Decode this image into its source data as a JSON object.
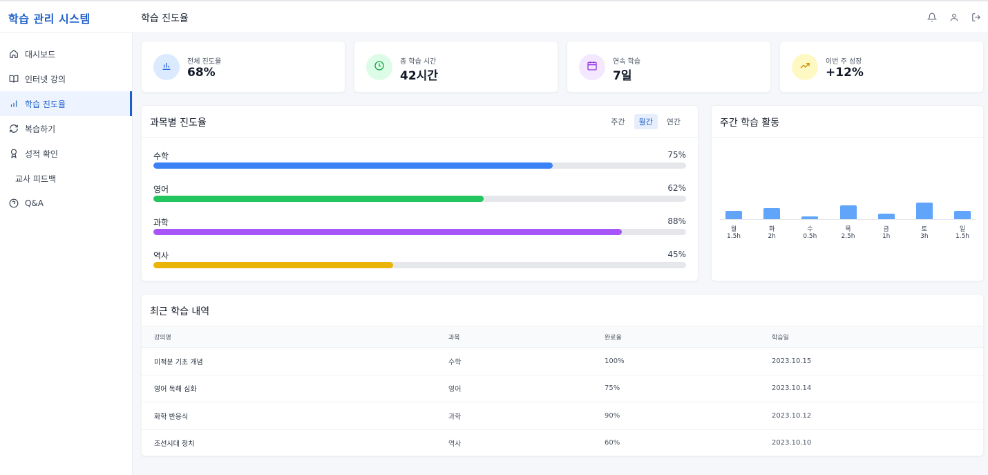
{
  "app": {
    "title": "학습 관리 시스템",
    "page_title": "학습 진도율"
  },
  "sidebar": {
    "items": [
      {
        "label": "대시보드",
        "icon": "home-icon"
      },
      {
        "label": "인터넷 강의",
        "icon": "book-open-icon"
      },
      {
        "label": "학습 진도율",
        "icon": "bar-chart-icon",
        "active": true
      },
      {
        "label": "복습하기",
        "icon": "refresh-icon"
      },
      {
        "label": "성적 확인",
        "icon": "award-icon"
      },
      {
        "label": "교사 피드백",
        "icon": ""
      },
      {
        "label": "Q&A",
        "icon": "help-circle-icon"
      }
    ]
  },
  "stats": [
    {
      "label": "전체 진도율",
      "value": "68%",
      "icon": "bar-chart-icon",
      "bg": "#dbeafe",
      "fg": "#2563eb"
    },
    {
      "label": "총 학습 시간",
      "value": "42시간",
      "icon": "clock-icon",
      "bg": "#dcfce7",
      "fg": "#16a34a"
    },
    {
      "label": "연속 학습",
      "value": "7일",
      "icon": "calendar-icon",
      "bg": "#f3e8ff",
      "fg": "#9333ea"
    },
    {
      "label": "이번 주 성장",
      "value": "+12%",
      "icon": "trending-up-icon",
      "bg": "#fef9c3",
      "fg": "#ca8a04"
    }
  ],
  "subject_progress": {
    "title": "과목별 진도율",
    "periods": [
      "주간",
      "월간",
      "연간"
    ],
    "selected_period": "월간",
    "subjects": [
      {
        "name": "수학",
        "percent": "75%",
        "fraction": 0.75,
        "color": "#3b82f6"
      },
      {
        "name": "영어",
        "percent": "62%",
        "fraction": 0.62,
        "color": "#22c55e"
      },
      {
        "name": "과학",
        "percent": "88%",
        "fraction": 0.88,
        "color": "#a855f7"
      },
      {
        "name": "역사",
        "percent": "45%",
        "fraction": 0.45,
        "color": "#eab308"
      }
    ]
  },
  "weekly": {
    "title": "주간 학습 활동",
    "bar_color": "#60a5fa",
    "max_hours": 3,
    "days": [
      {
        "day": "월",
        "hours_label": "1.5h",
        "hours": 1.5
      },
      {
        "day": "화",
        "hours_label": "2h",
        "hours": 2
      },
      {
        "day": "수",
        "hours_label": "0.5h",
        "hours": 0.5
      },
      {
        "day": "목",
        "hours_label": "2.5h",
        "hours": 2.5
      },
      {
        "day": "금",
        "hours_label": "1h",
        "hours": 1
      },
      {
        "day": "토",
        "hours_label": "3h",
        "hours": 3
      },
      {
        "day": "일",
        "hours_label": "1.5h",
        "hours": 1.5
      }
    ]
  },
  "recent": {
    "title": "최근 학습 내역",
    "columns": [
      "강의명",
      "과목",
      "완료율",
      "학습일"
    ],
    "rows": [
      [
        "미적분 기초 개념",
        "수학",
        "100%",
        "2023.10.15"
      ],
      [
        "영어 독해 심화",
        "영어",
        "75%",
        "2023.10.14"
      ],
      [
        "화학 반응식",
        "과학",
        "90%",
        "2023.10.12"
      ],
      [
        "조선시대 정치",
        "역사",
        "60%",
        "2023.10.10"
      ]
    ]
  }
}
